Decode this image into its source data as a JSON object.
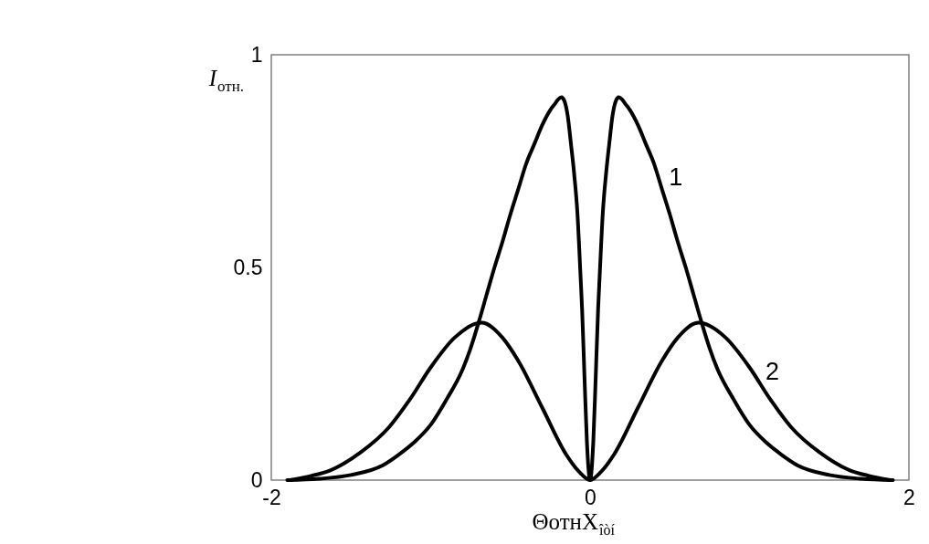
{
  "chart_data": {
    "type": "line",
    "xlabel": "ΘотнX$_{îòí}$",
    "ylabel": "I$_{отн.}$",
    "xlim": [
      -2,
      2
    ],
    "ylim": [
      0,
      1
    ],
    "xticks": [
      -2,
      0,
      2
    ],
    "yticks": [
      0,
      0.5,
      1
    ],
    "line_style": "solid",
    "series": [
      {
        "name": "1",
        "color": "#000000",
        "x": [
          -1.9,
          -1.7,
          -1.5,
          -1.3,
          -1.2,
          -1.1,
          -1.0,
          -0.9,
          -0.8,
          -0.75,
          -0.7,
          -0.65,
          -0.6,
          -0.55,
          -0.5,
          -0.45,
          -0.4,
          -0.35,
          -0.3,
          -0.25,
          -0.22,
          -0.2,
          -0.18,
          -0.16,
          -0.14,
          -0.12,
          -0.1,
          -0.08,
          -0.06,
          -0.05,
          -0.035,
          -0.02,
          0,
          0.02,
          0.035,
          0.05,
          0.06,
          0.08,
          0.1,
          0.12,
          0.14,
          0.16,
          0.18,
          0.2,
          0.22,
          0.25,
          0.3,
          0.35,
          0.4,
          0.45,
          0.5,
          0.55,
          0.6,
          0.65,
          0.7,
          0.75,
          0.8,
          0.9,
          1.0,
          1.1,
          1.2,
          1.3,
          1.5,
          1.7,
          1.9
        ],
        "values": [
          0,
          0.003,
          0.012,
          0.035,
          0.06,
          0.09,
          0.13,
          0.19,
          0.26,
          0.31,
          0.37,
          0.435,
          0.5,
          0.56,
          0.625,
          0.685,
          0.745,
          0.79,
          0.835,
          0.87,
          0.885,
          0.895,
          0.9,
          0.89,
          0.855,
          0.79,
          0.72,
          0.63,
          0.48,
          0.4,
          0.24,
          0.09,
          0,
          0.09,
          0.24,
          0.4,
          0.48,
          0.63,
          0.72,
          0.79,
          0.855,
          0.89,
          0.9,
          0.895,
          0.885,
          0.87,
          0.835,
          0.79,
          0.745,
          0.685,
          0.625,
          0.56,
          0.5,
          0.435,
          0.37,
          0.31,
          0.26,
          0.19,
          0.13,
          0.09,
          0.06,
          0.035,
          0.012,
          0.003,
          0
        ]
      },
      {
        "name": "2",
        "color": "#000000",
        "x": [
          -1.88,
          -1.75,
          -1.63,
          -1.44,
          -1.26,
          -1.13,
          -1.0,
          -0.85,
          -0.68,
          -0.55,
          -0.45,
          -0.3,
          -0.15,
          -0.07,
          0,
          0.07,
          0.15,
          0.3,
          0.45,
          0.55,
          0.68,
          0.85,
          1.0,
          1.13,
          1.26,
          1.44,
          1.63,
          1.75,
          1.88
        ],
        "values": [
          0,
          0.01,
          0.023,
          0.065,
          0.125,
          0.19,
          0.265,
          0.335,
          0.37,
          0.335,
          0.28,
          0.17,
          0.06,
          0.02,
          0,
          0.02,
          0.06,
          0.17,
          0.28,
          0.335,
          0.37,
          0.335,
          0.265,
          0.19,
          0.125,
          0.065,
          0.023,
          0.01,
          0
        ]
      }
    ]
  }
}
